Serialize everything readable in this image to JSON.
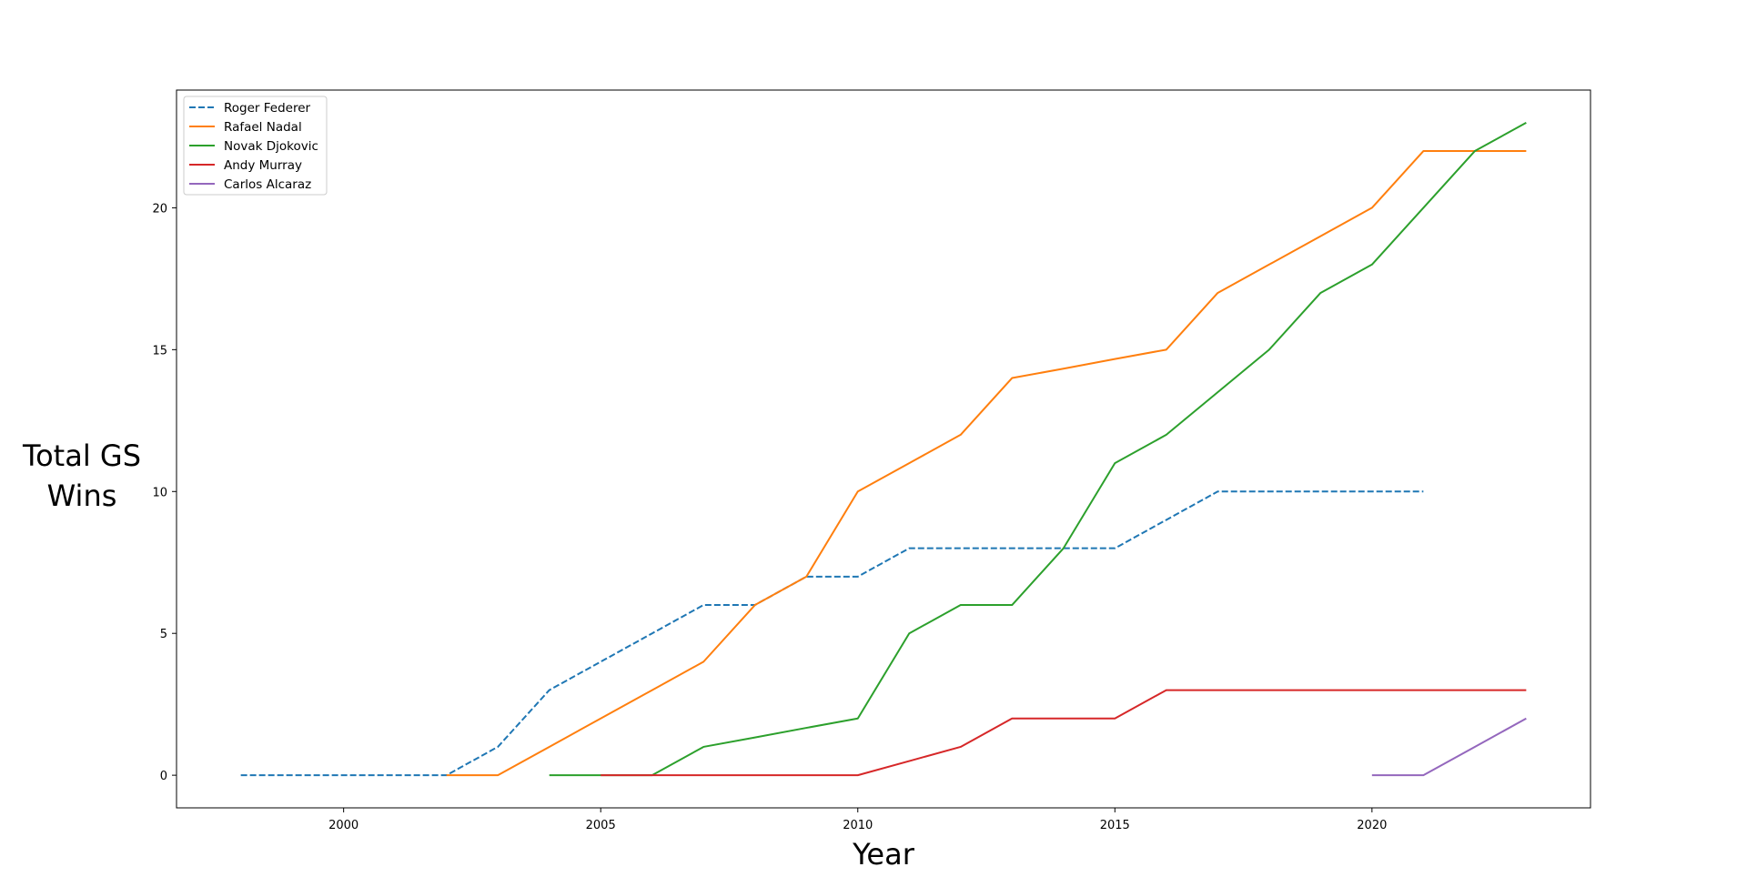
{
  "chart_data": {
    "type": "line",
    "title": "",
    "xlabel": "Year",
    "ylabel_lines": [
      "Total GS",
      "Wins"
    ],
    "xlim": [
      1996.75,
      2024.25
    ],
    "ylim": [
      -1.15,
      24.15
    ],
    "xticks": [
      2000,
      2005,
      2010,
      2015,
      2020
    ],
    "yticks": [
      0,
      5,
      10,
      15,
      20
    ],
    "grid": false,
    "legend_position": "top-left",
    "series": [
      {
        "name": "Roger Federer",
        "color": "#1f77b4",
        "linestyle": "dashed",
        "x": [
          1998,
          1999,
          2000,
          2001,
          2002,
          2003,
          2004,
          2005,
          2006,
          2007,
          2008,
          2009,
          2010,
          2011,
          2012,
          2013,
          2014,
          2015,
          2016,
          2017,
          2018,
          2019,
          2020,
          2021
        ],
        "y": [
          0,
          0,
          0,
          0,
          0,
          1,
          3,
          4,
          5,
          6,
          6,
          7,
          7,
          8,
          8,
          8,
          8,
          8,
          9,
          10,
          10,
          10,
          10,
          10
        ]
      },
      {
        "name": "Rafael Nadal",
        "color": "#ff7f0e",
        "linestyle": "solid",
        "x": [
          2002,
          2003,
          2004,
          2005,
          2006,
          2007,
          2008,
          2009,
          2010,
          2011,
          2012,
          2013,
          2014,
          2015,
          2016,
          2017,
          2018,
          2019,
          2020,
          2021,
          2022,
          2023
        ],
        "y": [
          0,
          0,
          1,
          2,
          3,
          4,
          6,
          7,
          10,
          11,
          12,
          14,
          14.33,
          14.67,
          15,
          17,
          18,
          19,
          20,
          22,
          22,
          22
        ]
      },
      {
        "name": "Novak Djokovic",
        "color": "#2ca02c",
        "linestyle": "solid",
        "x": [
          2004,
          2005,
          2006,
          2007,
          2008,
          2009,
          2010,
          2011,
          2012,
          2013,
          2014,
          2015,
          2016,
          2017,
          2018,
          2019,
          2020,
          2021,
          2022,
          2023
        ],
        "y": [
          0,
          0,
          0,
          1,
          1.33,
          1.67,
          2,
          5,
          6,
          6,
          8,
          11,
          12,
          13.5,
          15,
          17,
          18,
          20,
          22,
          23
        ]
      },
      {
        "name": "Andy Murray",
        "color": "#d62728",
        "linestyle": "solid",
        "x": [
          2005,
          2006,
          2007,
          2008,
          2009,
          2010,
          2011,
          2012,
          2013,
          2014,
          2015,
          2016,
          2017,
          2018,
          2019,
          2020,
          2021,
          2022,
          2023
        ],
        "y": [
          0,
          0,
          0,
          0,
          0,
          0,
          0.5,
          1,
          2,
          2,
          2,
          3,
          3,
          3,
          3,
          3,
          3,
          3,
          3
        ]
      },
      {
        "name": "Carlos Alcaraz",
        "color": "#9467bd",
        "linestyle": "solid",
        "x": [
          2020,
          2021,
          2022,
          2023
        ],
        "y": [
          0,
          0,
          1,
          2
        ]
      }
    ]
  }
}
